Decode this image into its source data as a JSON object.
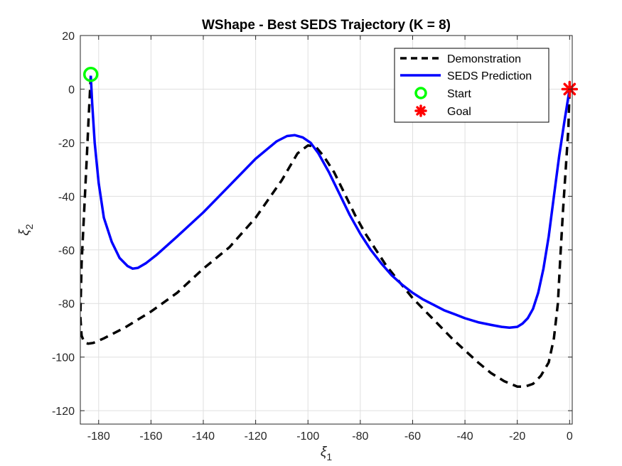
{
  "chart_data": {
    "type": "line",
    "title": "WShape - Best SEDS Trajectory (K = 8)",
    "xlabel": {
      "base": "ξ",
      "sub": "1"
    },
    "ylabel": {
      "base": "ξ",
      "sub": "2"
    },
    "xlim": [
      -187,
      1
    ],
    "ylim": [
      -125,
      20
    ],
    "xticks": [
      -180,
      -160,
      -140,
      -120,
      -100,
      -80,
      -60,
      -40,
      -20,
      0
    ],
    "yticks": [
      20,
      0,
      -20,
      -40,
      -60,
      -80,
      -100,
      -120
    ],
    "xtick_labels": [
      "-180",
      "-160",
      "-140",
      "-120",
      "-100",
      "-80",
      "-60",
      "-40",
      "-20",
      "0"
    ],
    "ytick_labels": [
      "20",
      "0",
      "-20",
      "-40",
      "-60",
      "-80",
      "-100",
      "-120"
    ],
    "grid": true,
    "legend_position": "top-right",
    "legend": [
      {
        "label": "Demonstration",
        "series": "demonstration"
      },
      {
        "label": "SEDS Prediction",
        "series": "seds"
      },
      {
        "label": "Start",
        "series": "start"
      },
      {
        "label": "Goal",
        "series": "goal"
      }
    ],
    "series": [
      {
        "name": "Demonstration",
        "color": "#000000",
        "style": "dashed",
        "x": [
          -183,
          -183.8,
          -184.5,
          -185.5,
          -186.5,
          -187,
          -186.5,
          -185.5,
          -184,
          -182,
          -178,
          -170,
          -160,
          -150,
          -140,
          -130,
          -120,
          -110,
          -104,
          -100,
          -97,
          -94,
          -90,
          -86,
          -82,
          -78,
          -74,
          -70,
          -65,
          -60,
          -55,
          -50,
          -45,
          -40,
          -35,
          -30,
          -25,
          -20,
          -17,
          -14,
          -11,
          -8,
          -6,
          -4.5,
          -3.5,
          -2.5,
          -1.5,
          -0.5,
          0
        ],
        "y": [
          5,
          -10,
          -25,
          -45,
          -65,
          -85,
          -92,
          -94.5,
          -95,
          -94.7,
          -93,
          -89,
          -83,
          -76,
          -67,
          -59,
          -48,
          -34,
          -24,
          -21,
          -21.5,
          -25,
          -31,
          -39,
          -47,
          -54,
          -60,
          -66,
          -72,
          -78,
          -83,
          -88,
          -93,
          -97.5,
          -102,
          -106,
          -109,
          -111,
          -111,
          -110,
          -107,
          -102,
          -93,
          -80,
          -62,
          -45,
          -30,
          -15,
          0
        ]
      },
      {
        "name": "SEDS Prediction",
        "color": "#0000ff",
        "style": "solid",
        "x": [
          -183,
          -182.5,
          -181.5,
          -180,
          -178,
          -175,
          -172,
          -169,
          -167,
          -165,
          -162,
          -158,
          -150,
          -140,
          -130,
          -120,
          -112,
          -108,
          -105,
          -102,
          -99,
          -96,
          -92,
          -88,
          -84,
          -80,
          -76,
          -72,
          -68,
          -64,
          -60,
          -56,
          -52,
          -48,
          -44,
          -40,
          -35,
          -30,
          -26,
          -23,
          -20,
          -18,
          -16,
          -14,
          -12,
          -10,
          -8,
          -6,
          -4,
          -2,
          0
        ],
        "y": [
          5,
          -5,
          -20,
          -35,
          -48,
          -57,
          -63,
          -66,
          -67,
          -66.7,
          -65,
          -62,
          -55,
          -46,
          -36,
          -26,
          -19.5,
          -17.5,
          -17.2,
          -18,
          -20,
          -24,
          -31,
          -39,
          -47,
          -54,
          -60,
          -65,
          -69.5,
          -73,
          -76,
          -78.5,
          -80.5,
          -82.5,
          -84,
          -85.5,
          -87,
          -88,
          -88.7,
          -89,
          -88.7,
          -87.5,
          -85.5,
          -82,
          -76,
          -67,
          -55,
          -40,
          -25,
          -12,
          0
        ]
      },
      {
        "name": "Start",
        "marker": "circle",
        "color": "#00ff00",
        "x": [
          -183
        ],
        "y": [
          5.5
        ]
      },
      {
        "name": "Goal",
        "marker": "asterisk",
        "color": "#ff0000",
        "x": [
          0
        ],
        "y": [
          0
        ]
      }
    ]
  }
}
